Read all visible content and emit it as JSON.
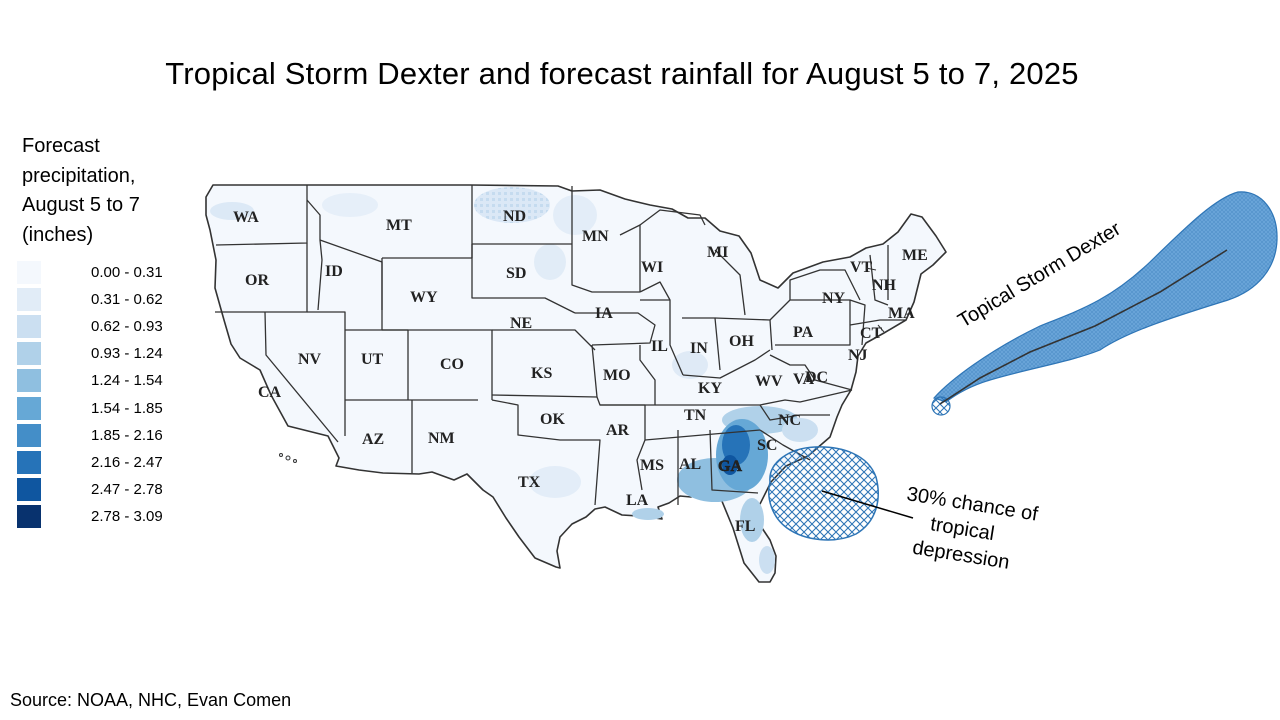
{
  "title": "Tropical Storm Dexter and forecast rainfall for August 5 to 7, 2025",
  "legend": {
    "title_lines": [
      "Forecast",
      "precipitation,",
      "August 5 to 7",
      "(inches)"
    ],
    "items": [
      {
        "range": "0.00 - 0.31",
        "color": "#f4f8fd"
      },
      {
        "range": "0.31 - 0.62",
        "color": "#e1ecf7"
      },
      {
        "range": "0.62 - 0.93",
        "color": "#cbdff1"
      },
      {
        "range": "0.93 - 1.24",
        "color": "#b0d1e9"
      },
      {
        "range": "1.24 - 1.54",
        "color": "#8fbfe0"
      },
      {
        "range": "1.54 - 1.85",
        "color": "#66a8d6"
      },
      {
        "range": "1.85 - 2.16",
        "color": "#448ec8"
      },
      {
        "range": "2.16 - 2.47",
        "color": "#2673b8"
      },
      {
        "range": "2.47 - 2.78",
        "color": "#0f56a0"
      },
      {
        "range": "2.78 - 3.09",
        "color": "#08326e"
      }
    ]
  },
  "map": {
    "states": [
      "WA",
      "OR",
      "CA",
      "ID",
      "NV",
      "MT",
      "WY",
      "UT",
      "AZ",
      "CO",
      "NM",
      "ND",
      "SD",
      "NE",
      "KS",
      "OK",
      "TX",
      "MN",
      "IA",
      "MO",
      "AR",
      "LA",
      "WI",
      "IL",
      "MS",
      "MI",
      "IN",
      "KY",
      "TN",
      "AL",
      "OH",
      "WV",
      "GA",
      "FL",
      "SC",
      "NC",
      "VA",
      "PA",
      "NY",
      "VT",
      "NH",
      "ME",
      "MA",
      "CT",
      "NJ",
      "DC"
    ],
    "annotations": {
      "storm_label": "Topical Storm Dexter",
      "depression_label_lines": [
        "30% chance of",
        "tropical",
        "depression"
      ]
    },
    "colors": {
      "storm_cone": "#5b9bd5",
      "depression_hatch": "#2e75b6",
      "state_border": "#333333"
    }
  },
  "source": "Source: NOAA, NHC, Evan Comen"
}
